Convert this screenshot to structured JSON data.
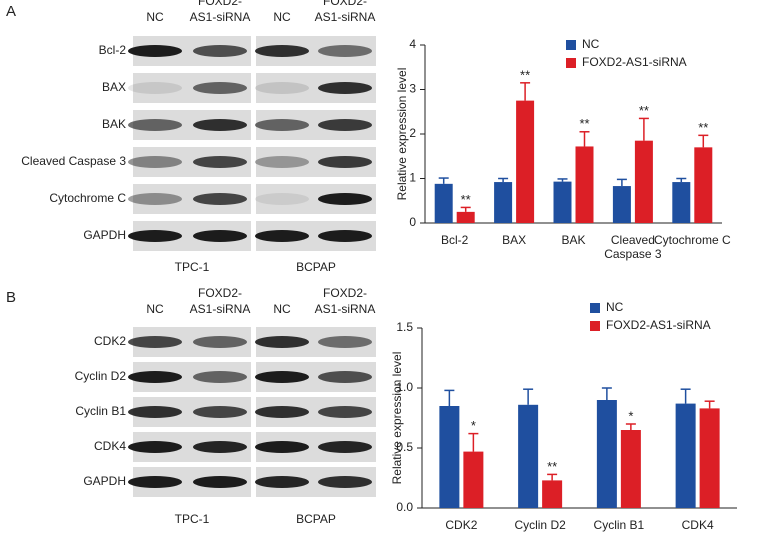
{
  "blots": [
    {
      "letter": "A",
      "columns": [
        [
          "NC"
        ],
        [
          "FOXD2-",
          "AS1-siRNA"
        ],
        [
          "NC"
        ],
        [
          "FOXD2-",
          "AS1-siRNA"
        ]
      ],
      "rows": [
        "Bcl-2",
        "BAX",
        "BAK",
        "Cleaved Caspase 3",
        "Cytochrome C",
        "GAPDH"
      ],
      "cell_lines": [
        "TPC-1",
        "BCPAP"
      ]
    },
    {
      "letter": "B",
      "columns": [
        [
          "NC"
        ],
        [
          "FOXD2-",
          "AS1-siRNA"
        ],
        [
          "NC"
        ],
        [
          "FOXD2-",
          "AS1-siRNA"
        ]
      ],
      "rows": [
        "CDK2",
        "Cyclin D2",
        "Cyclin B1",
        "CDK4",
        "GAPDH"
      ],
      "cell_lines": [
        "TPC-1",
        "BCPAP"
      ]
    }
  ],
  "chart_data": [
    {
      "type": "bar",
      "y_label": "Relative expression level",
      "categories": [
        "Bcl-2",
        "BAX",
        "BAK",
        "Cleaved Caspase 3",
        "Cytochrome C"
      ],
      "series": [
        {
          "name": "NC",
          "color": "#1f4f9f",
          "values": [
            0.88,
            0.92,
            0.93,
            0.83,
            0.92
          ],
          "errors": [
            0.13,
            0.08,
            0.06,
            0.15,
            0.08
          ]
        },
        {
          "name": "FOXD2-AS1-siRNA",
          "color": "#dc1f26",
          "values": [
            0.25,
            2.75,
            1.72,
            1.85,
            1.7
          ],
          "errors": [
            0.1,
            0.4,
            0.33,
            0.5,
            0.27
          ],
          "significance": [
            "**",
            "**",
            "**",
            "**",
            "**"
          ]
        }
      ],
      "ylim": [
        0,
        4
      ],
      "yticks": [
        0,
        1,
        2,
        3,
        4
      ],
      "legend": "top-right"
    },
    {
      "type": "bar",
      "y_label": "Relative expression level",
      "categories": [
        "CDK2",
        "Cyclin D2",
        "Cyclin B1",
        "CDK4"
      ],
      "series": [
        {
          "name": "NC",
          "color": "#1f4f9f",
          "values": [
            0.85,
            0.86,
            0.9,
            0.87
          ],
          "errors": [
            0.13,
            0.13,
            0.1,
            0.12
          ]
        },
        {
          "name": "FOXD2-AS1-siRNA",
          "color": "#dc1f26",
          "values": [
            0.47,
            0.23,
            0.65,
            0.83
          ],
          "errors": [
            0.15,
            0.05,
            0.05,
            0.06
          ],
          "significance": [
            "*",
            "**",
            "*",
            null
          ]
        }
      ],
      "ylim": [
        0,
        1.5
      ],
      "yticks": [
        {
          "value": 0,
          "label": "0.0"
        },
        {
          "value": 0.5,
          "label": "0.5"
        },
        {
          "value": 1,
          "label": "1.0"
        },
        {
          "value": 1.5,
          "label": "1.5"
        }
      ],
      "legend": "top-right"
    }
  ]
}
